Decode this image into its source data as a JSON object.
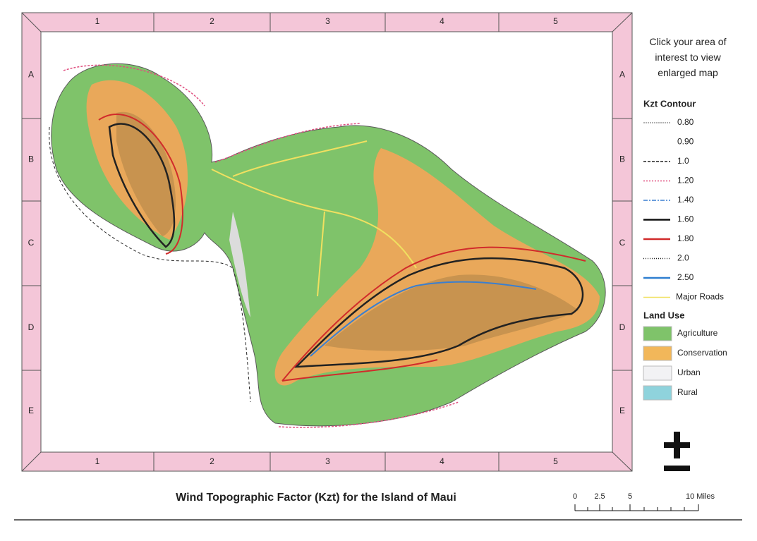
{
  "grid": {
    "columns": [
      "1",
      "2",
      "3",
      "4",
      "5"
    ],
    "rows": [
      "A",
      "B",
      "C",
      "D",
      "E"
    ]
  },
  "instruction": "Click your area of interest to view enlarged map",
  "legend": {
    "contour_title": "Kzt Contour",
    "contours": [
      "0.80",
      "0.90",
      "1.0",
      "1.20",
      "1.40",
      "1.60",
      "1.80",
      "2.0",
      "2.50",
      "Major Roads"
    ],
    "land_use_title": "Land Use",
    "land_use": [
      "Agriculture",
      "Conservation",
      "Urban",
      "Rural"
    ]
  },
  "title": "Wind Topographic Factor (Kzt) for the Island of Maui",
  "scale": {
    "labels": [
      "0",
      "2.5",
      "5",
      "10 Miles"
    ]
  }
}
